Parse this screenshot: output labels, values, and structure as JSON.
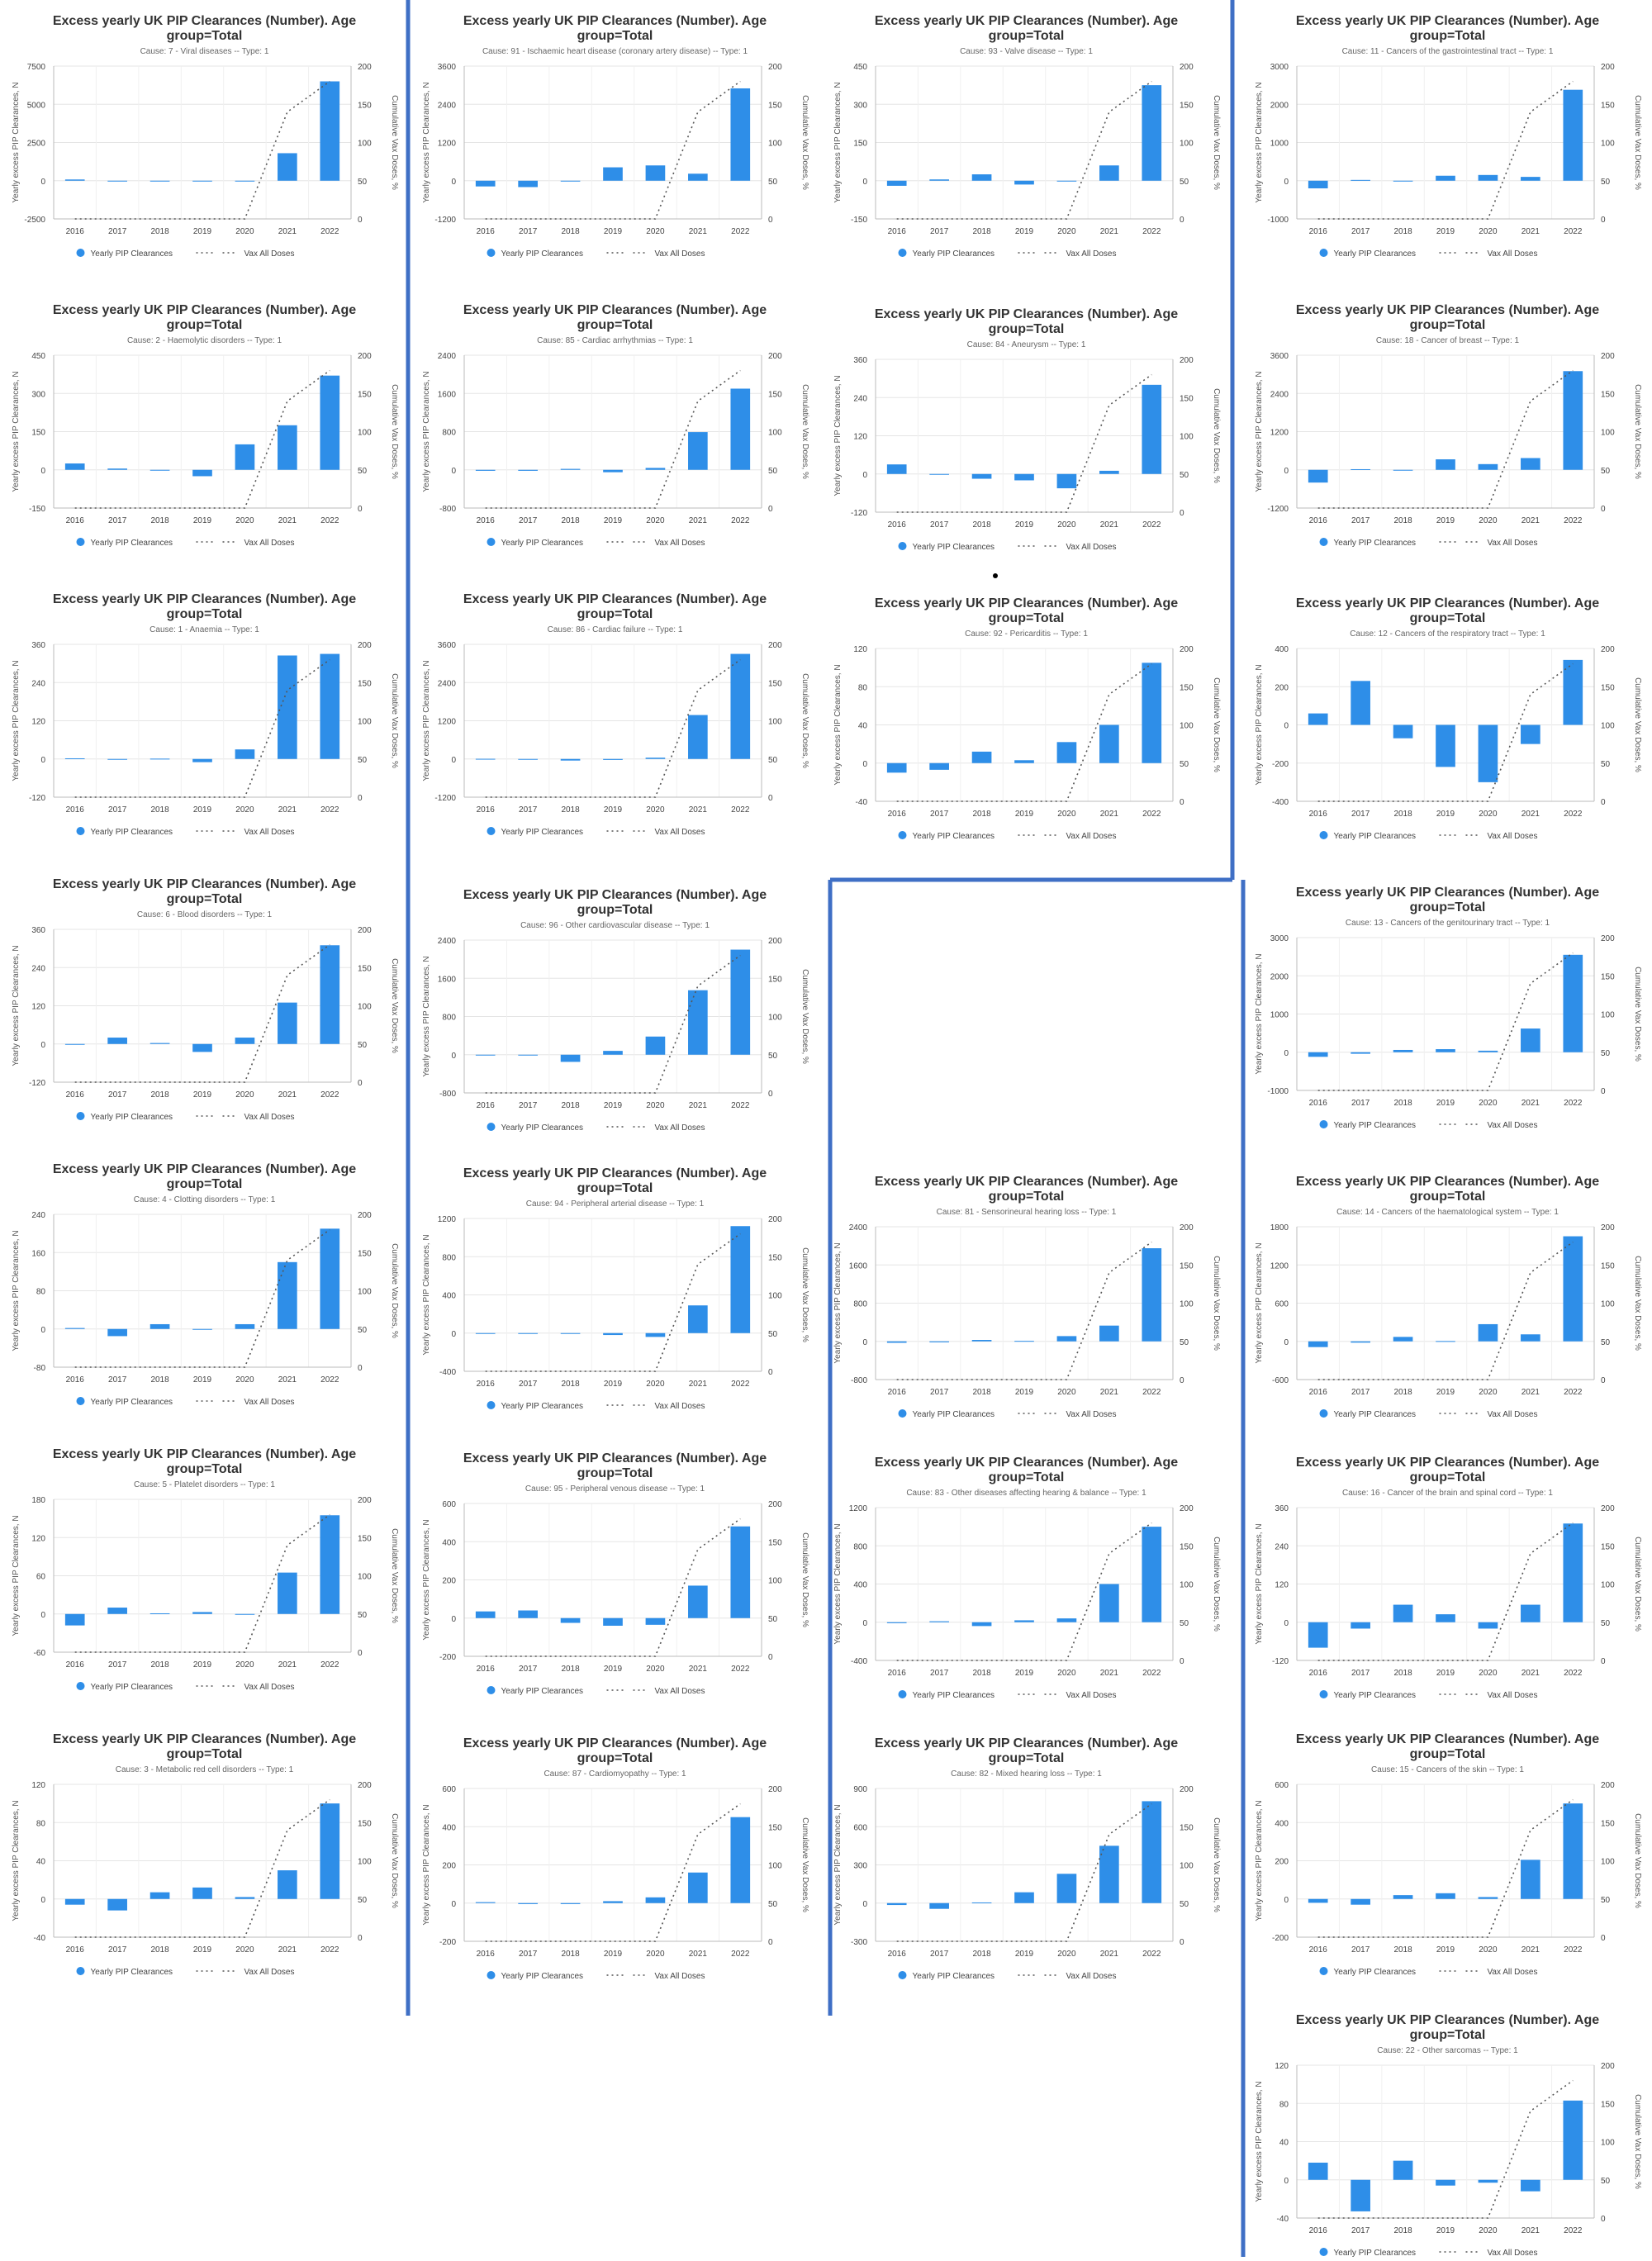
{
  "common": {
    "title_line1": "Excess yearly UK PIP Clearances (Number). Age",
    "title_line2": "group=Total",
    "ylabel": "Yearly excess PIP Clearances, N",
    "y2label": "Cumulative Vax Doses, %",
    "legend_bar": "Yearly PIP Clearances",
    "legend_line": "Vax All Doses",
    "years": [
      "2016",
      "2017",
      "2018",
      "2019",
      "2020",
      "2021",
      "2022"
    ],
    "y2_ticks": [
      "0",
      "50",
      "100",
      "150",
      "200"
    ],
    "vax_values": [
      0,
      0,
      0,
      0,
      0,
      140,
      180
    ],
    "bar_color": "#2e8ee8",
    "divider_color": "#3f6fc5"
  },
  "chart_data": [
    {
      "type": "bar",
      "subtitle": "Cause: 7 - Viral diseases -- Type: 1",
      "yticks": [
        -2500,
        0,
        2500,
        5000,
        7500
      ],
      "values": [
        80,
        0,
        0,
        0,
        0,
        1800,
        6500
      ]
    },
    {
      "type": "bar",
      "subtitle": "Cause: 2 - Haemolytic disorders -- Type: 1",
      "yticks": [
        -150,
        0,
        150,
        300,
        450
      ],
      "values": [
        25,
        5,
        0,
        -25,
        100,
        175,
        370
      ]
    },
    {
      "type": "bar",
      "subtitle": "Cause: 1 - Anaemia -- Type: 1",
      "yticks": [
        -120,
        0,
        120,
        240,
        360
      ],
      "values": [
        2,
        0,
        1,
        -10,
        30,
        325,
        330
      ]
    },
    {
      "type": "bar",
      "subtitle": "Cause: 6 - Blood disorders -- Type: 1",
      "yticks": [
        -120,
        0,
        120,
        240,
        360
      ],
      "values": [
        0,
        20,
        3,
        -25,
        20,
        130,
        310
      ]
    },
    {
      "type": "bar",
      "subtitle": "Cause: 4 - Clotting disorders -- Type: 1",
      "yticks": [
        -80,
        0,
        80,
        160,
        240
      ],
      "values": [
        2,
        -15,
        10,
        0,
        10,
        140,
        210
      ]
    },
    {
      "type": "bar",
      "subtitle": "Cause: 5 - Platelet disorders -- Type: 1",
      "yticks": [
        -60,
        0,
        60,
        120,
        180
      ],
      "values": [
        -18,
        10,
        1,
        3,
        0,
        65,
        155
      ]
    },
    {
      "type": "bar",
      "subtitle": "Cause: 3 - Metabolic red cell disorders -- Type: 1",
      "yticks": [
        -40,
        0,
        40,
        80,
        120
      ],
      "values": [
        -6,
        -12,
        7,
        12,
        2,
        30,
        100
      ]
    },
    {
      "type": "bar",
      "subtitle": "Cause: 91 - Ischaemic heart disease (coronary artery disease) -- Type: 1",
      "yticks": [
        -1200,
        0,
        1200,
        2400,
        3600
      ],
      "values": [
        -180,
        -200,
        0,
        420,
        480,
        220,
        2900
      ]
    },
    {
      "type": "bar",
      "subtitle": "Cause: 85 - Cardiac arrhythmias -- Type: 1",
      "yticks": [
        -800,
        0,
        800,
        1600,
        2400
      ],
      "values": [
        -20,
        -20,
        20,
        -50,
        40,
        790,
        1700
      ]
    },
    {
      "type": "bar",
      "subtitle": "Cause: 86 - Cardiac failure -- Type: 1",
      "yticks": [
        -1200,
        0,
        1200,
        2400,
        3600
      ],
      "values": [
        5,
        0,
        -50,
        -30,
        40,
        1380,
        3300
      ]
    },
    {
      "type": "bar",
      "subtitle": "Cause: 96 - Other cardiovascular disease -- Type: 1",
      "yticks": [
        -800,
        0,
        800,
        1600,
        2400
      ],
      "values": [
        0,
        0,
        -150,
        80,
        380,
        1350,
        2200
      ]
    },
    {
      "type": "bar",
      "subtitle": "Cause: 94 - Peripheral arterial disease -- Type: 1",
      "yticks": [
        -400,
        0,
        400,
        800,
        1200
      ],
      "values": [
        0,
        0,
        0,
        -20,
        -40,
        290,
        1120
      ]
    },
    {
      "type": "bar",
      "subtitle": "Cause: 95 - Peripheral venous disease -- Type: 1",
      "yticks": [
        -200,
        0,
        200,
        400,
        600
      ],
      "values": [
        35,
        40,
        -25,
        -40,
        -35,
        170,
        480
      ]
    },
    {
      "type": "bar",
      "subtitle": "Cause: 87 - Cardiomyopathy -- Type: 1",
      "yticks": [
        -200,
        0,
        200,
        400,
        600
      ],
      "values": [
        5,
        -5,
        -5,
        10,
        30,
        160,
        450
      ]
    },
    {
      "type": "bar",
      "subtitle": "Cause: 93 - Valve disease -- Type: 1",
      "yticks": [
        -150,
        0,
        150,
        300,
        450
      ],
      "values": [
        -20,
        5,
        25,
        -15,
        0,
        60,
        375
      ]
    },
    {
      "type": "bar",
      "subtitle": "Cause: 84 - Aneurysm -- Type: 1",
      "yticks": [
        -120,
        0,
        120,
        240,
        360
      ],
      "values": [
        30,
        0,
        -15,
        -20,
        -45,
        10,
        280
      ]
    },
    {
      "type": "bar",
      "subtitle": "Cause: 92 - Pericarditis -- Type: 1",
      "yticks": [
        -40,
        0,
        40,
        80,
        120
      ],
      "values": [
        -10,
        -7,
        12,
        3,
        22,
        40,
        105
      ]
    },
    {
      "type": "bar",
      "subtitle": "Cause: 81 - Sensorineural hearing loss -- Type: 1",
      "yticks": [
        -800,
        0,
        800,
        1600,
        2400
      ],
      "values": [
        -30,
        -20,
        30,
        10,
        110,
        330,
        1950
      ]
    },
    {
      "type": "bar",
      "subtitle": "Cause: 83 - Other diseases affecting hearing & balance -- Type: 1",
      "yticks": [
        -400,
        0,
        400,
        800,
        1200
      ],
      "values": [
        -10,
        10,
        -40,
        20,
        40,
        400,
        1000
      ]
    },
    {
      "type": "bar",
      "subtitle": "Cause: 82 - Mixed hearing loss -- Type: 1",
      "yticks": [
        -300,
        0,
        300,
        600,
        900
      ],
      "values": [
        -15,
        -45,
        5,
        85,
        230,
        450,
        800
      ]
    },
    {
      "type": "bar",
      "subtitle": "Cause: 11 - Cancers of the gastrointestinal tract -- Type: 1",
      "yticks": [
        -1000,
        0,
        1000,
        2000,
        3000
      ],
      "values": [
        -200,
        20,
        0,
        130,
        150,
        100,
        2380
      ]
    },
    {
      "type": "bar",
      "subtitle": "Cause: 18 - Cancer of breast -- Type: 1",
      "yticks": [
        -1200,
        0,
        1200,
        2400,
        3600
      ],
      "values": [
        -400,
        20,
        0,
        330,
        180,
        370,
        3100
      ]
    },
    {
      "type": "bar",
      "subtitle": "Cause: 12 - Cancers of the respiratory tract -- Type: 1",
      "yticks": [
        -400,
        -200,
        0,
        200,
        400
      ],
      "values": [
        60,
        230,
        -70,
        -220,
        -300,
        -100,
        340
      ]
    },
    {
      "type": "bar",
      "subtitle": "Cause: 13 - Cancers of the genitourinary tract -- Type: 1",
      "yticks": [
        -1000,
        0,
        1000,
        2000,
        3000
      ],
      "values": [
        -120,
        -40,
        60,
        80,
        40,
        620,
        2550
      ]
    },
    {
      "type": "bar",
      "subtitle": "Cause: 14 - Cancers of the haematological system -- Type: 1",
      "yticks": [
        -600,
        0,
        600,
        1200,
        1800
      ],
      "values": [
        -90,
        -20,
        70,
        5,
        270,
        110,
        1650
      ]
    },
    {
      "type": "bar",
      "subtitle": "Cause: 16 - Cancer of the brain and spinal cord -- Type: 1",
      "yticks": [
        -120,
        0,
        120,
        240,
        360
      ],
      "values": [
        -80,
        -20,
        55,
        25,
        -20,
        55,
        310
      ]
    },
    {
      "type": "bar",
      "subtitle": "Cause: 15 - Cancers of the skin -- Type: 1",
      "yticks": [
        -200,
        0,
        200,
        400,
        600
      ],
      "values": [
        -20,
        -30,
        20,
        30,
        10,
        205,
        500
      ]
    },
    {
      "type": "bar",
      "subtitle": "Cause: 22 - Other sarcomas -- Type: 1",
      "yticks": [
        -40,
        0,
        40,
        80,
        120
      ],
      "values": [
        18,
        -33,
        20,
        -6,
        -3,
        -12,
        83
      ]
    }
  ]
}
